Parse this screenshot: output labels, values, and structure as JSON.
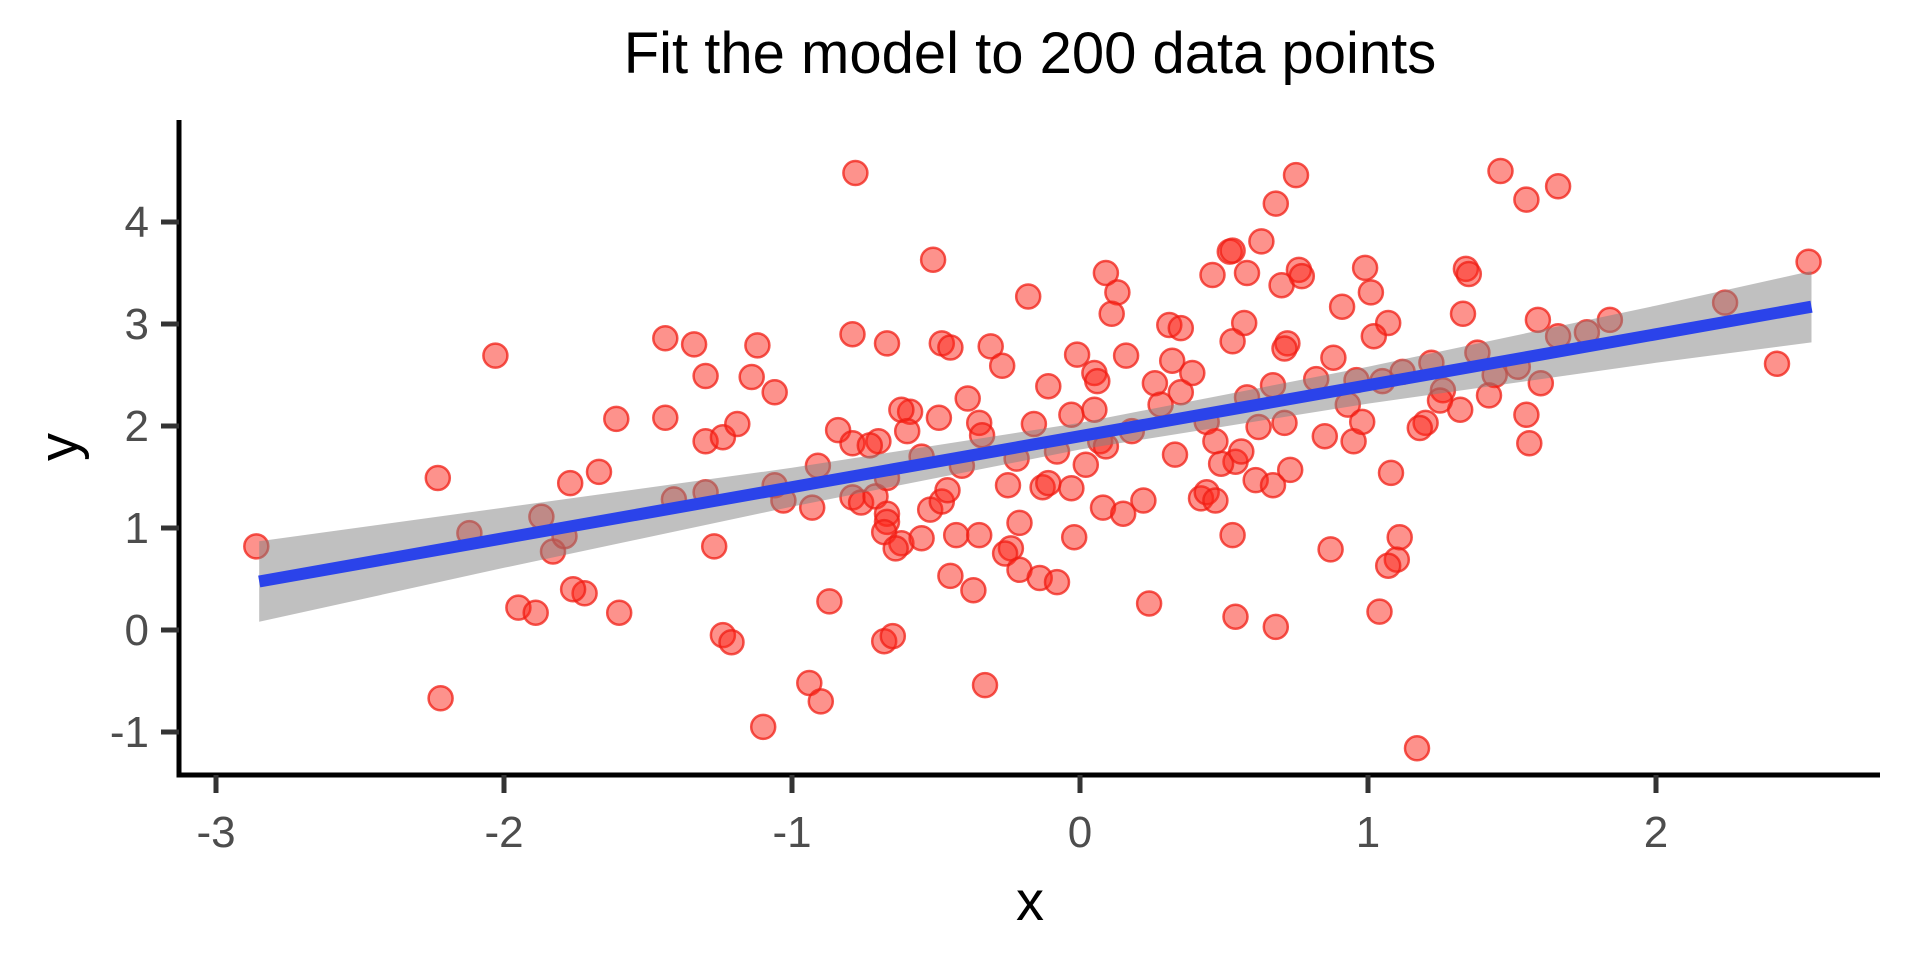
{
  "title": "Fit the model to 200 data points",
  "chart_data": {
    "type": "scatter",
    "title": "Fit the model to 200 data points",
    "xlabel": "x",
    "ylabel": "y",
    "xlim": [
      -3.13,
      2.78
    ],
    "ylim": [
      -1.45,
      4.95
    ],
    "x_ticks": [
      -3,
      -2,
      -1,
      0,
      1,
      2
    ],
    "y_ticks": [
      -1,
      0,
      1,
      2,
      3,
      4
    ],
    "grid": false,
    "legend": "none",
    "n_points": 200,
    "theme": "classic (no gridlines, black axis lines, outward ticks)",
    "trend_line": {
      "type": "linear",
      "intercept": 1.9,
      "slope": 0.5,
      "x_start": -2.85,
      "x_end": 2.54,
      "y_start": 0.47,
      "y_end": 3.17
    },
    "ci_band": [
      {
        "x": -2.85,
        "lo": 0.08,
        "hi": 0.87
      },
      {
        "x": -2.0,
        "lo": 0.61,
        "hi": 1.2
      },
      {
        "x": -1.0,
        "lo": 1.21,
        "hi": 1.59
      },
      {
        "x": 0.0,
        "lo": 1.77,
        "hi": 2.03
      },
      {
        "x": 1.0,
        "lo": 2.22,
        "hi": 2.58
      },
      {
        "x": 2.0,
        "lo": 2.62,
        "hi": 3.18
      },
      {
        "x": 2.54,
        "lo": 2.82,
        "hi": 3.52
      }
    ],
    "points": [
      [
        -2.03,
        2.69
      ],
      [
        -1.44,
        2.86
      ],
      [
        -1.34,
        2.8
      ],
      [
        -1.3,
        2.49
      ],
      [
        -1.61,
        2.07
      ],
      [
        -1.44,
        2.08
      ],
      [
        -1.3,
        1.85
      ],
      [
        -1.24,
        1.89
      ],
      [
        -1.19,
        2.02
      ],
      [
        -0.78,
        4.48
      ],
      [
        -0.51,
        3.63
      ],
      [
        -0.18,
        3.27
      ],
      [
        -1.12,
        2.79
      ],
      [
        -0.79,
        2.9
      ],
      [
        -0.67,
        2.81
      ],
      [
        -0.48,
        2.81
      ],
      [
        -0.45,
        2.77
      ],
      [
        -0.31,
        2.78
      ],
      [
        -0.27,
        2.59
      ],
      [
        -1.14,
        2.48
      ],
      [
        -1.06,
        2.33
      ],
      [
        -0.11,
        2.39
      ],
      [
        -0.01,
        2.7
      ],
      [
        0.05,
        2.52
      ],
      [
        0.06,
        2.44
      ],
      [
        0.09,
        3.5
      ],
      [
        0.13,
        3.31
      ],
      [
        0.11,
        3.1
      ],
      [
        0.16,
        2.69
      ],
      [
        0.31,
        2.99
      ],
      [
        0.35,
        2.96
      ],
      [
        0.32,
        2.64
      ],
      [
        0.39,
        2.52
      ],
      [
        0.35,
        2.33
      ],
      [
        0.26,
        2.42
      ],
      [
        0.46,
        3.48
      ],
      [
        0.52,
        3.71
      ],
      [
        0.53,
        3.72
      ],
      [
        0.58,
        3.5
      ],
      [
        0.63,
        3.81
      ],
      [
        0.57,
        3.01
      ],
      [
        0.53,
        2.83
      ],
      [
        0.68,
        4.18
      ],
      [
        0.75,
        4.46
      ],
      [
        0.7,
        3.38
      ],
      [
        0.76,
        3.53
      ],
      [
        0.77,
        3.47
      ],
      [
        0.72,
        2.81
      ],
      [
        0.71,
        2.76
      ],
      [
        0.67,
        2.4
      ],
      [
        0.05,
        2.16
      ],
      [
        0.07,
        1.85
      ],
      [
        -0.03,
        2.11
      ],
      [
        -0.35,
        2.03
      ],
      [
        -0.34,
        1.91
      ],
      [
        -0.59,
        2.14
      ],
      [
        -0.62,
        2.16
      ],
      [
        -0.49,
        2.08
      ],
      [
        -0.84,
        1.96
      ],
      [
        -0.79,
        1.83
      ],
      [
        -0.7,
        1.85
      ],
      [
        -0.73,
        1.81
      ],
      [
        -0.39,
        2.27
      ],
      [
        0.09,
        1.8
      ],
      [
        1.46,
        4.5
      ],
      [
        1.55,
        4.22
      ],
      [
        1.66,
        4.35
      ],
      [
        0.99,
        3.55
      ],
      [
        0.91,
        3.17
      ],
      [
        1.01,
        3.31
      ],
      [
        1.34,
        3.54
      ],
      [
        1.35,
        3.49
      ],
      [
        1.07,
        3.01
      ],
      [
        1.02,
        2.88
      ],
      [
        1.33,
        3.1
      ],
      [
        1.59,
        3.04
      ],
      [
        1.66,
        2.88
      ],
      [
        1.76,
        2.92
      ],
      [
        1.84,
        3.04
      ],
      [
        2.24,
        3.21
      ],
      [
        2.53,
        3.61
      ],
      [
        2.42,
        2.61
      ],
      [
        0.93,
        2.21
      ],
      [
        1.2,
        2.03
      ],
      [
        1.18,
        1.98
      ],
      [
        1.32,
        2.16
      ],
      [
        1.55,
        2.11
      ],
      [
        0.95,
        1.85
      ],
      [
        1.56,
        1.83
      ],
      [
        -2.23,
        1.49
      ],
      [
        -2.86,
        0.82
      ],
      [
        -2.12,
        0.95
      ],
      [
        -1.87,
        1.11
      ],
      [
        -1.77,
        1.44
      ],
      [
        -1.67,
        1.55
      ],
      [
        -1.83,
        0.77
      ],
      [
        -1.79,
        0.92
      ],
      [
        -1.95,
        0.22
      ],
      [
        -1.89,
        0.17
      ],
      [
        -1.72,
        0.36
      ],
      [
        -1.76,
        0.4
      ],
      [
        -1.6,
        0.17
      ],
      [
        -1.41,
        1.28
      ],
      [
        -1.3,
        1.35
      ],
      [
        -1.27,
        0.82
      ],
      [
        -1.24,
        -0.05
      ],
      [
        -1.21,
        -0.12
      ],
      [
        -2.22,
        -0.67
      ],
      [
        -0.91,
        1.61
      ],
      [
        -1.06,
        1.42
      ],
      [
        -1.03,
        1.27
      ],
      [
        -0.93,
        1.2
      ],
      [
        -0.79,
        1.3
      ],
      [
        -0.76,
        1.25
      ],
      [
        -0.71,
        1.31
      ],
      [
        -0.67,
        1.49
      ],
      [
        -0.67,
        1.14
      ],
      [
        -0.67,
        1.06
      ],
      [
        -0.68,
        0.96
      ],
      [
        -0.62,
        0.85
      ],
      [
        -0.64,
        0.8
      ],
      [
        -0.55,
        0.9
      ],
      [
        -0.52,
        1.18
      ],
      [
        -0.48,
        1.26
      ],
      [
        -0.46,
        1.37
      ],
      [
        -0.43,
        0.93
      ],
      [
        -0.35,
        0.93
      ],
      [
        -0.25,
        1.42
      ],
      [
        -0.24,
        0.8
      ],
      [
        -0.26,
        0.75
      ],
      [
        -0.21,
        1.05
      ],
      [
        -0.21,
        0.59
      ],
      [
        -0.45,
        0.53
      ],
      [
        -0.37,
        0.39
      ],
      [
        -0.14,
        0.51
      ],
      [
        -0.08,
        0.47
      ],
      [
        -0.13,
        1.4
      ],
      [
        -0.11,
        1.44
      ],
      [
        -0.03,
        1.39
      ],
      [
        -0.02,
        0.91
      ],
      [
        0.08,
        1.2
      ],
      [
        0.15,
        1.14
      ],
      [
        0.22,
        1.27
      ],
      [
        0.42,
        1.29
      ],
      [
        0.44,
        1.35
      ],
      [
        0.47,
        1.27
      ],
      [
        0.53,
        0.93
      ],
      [
        0.54,
        1.65
      ],
      [
        0.49,
        1.63
      ],
      [
        0.61,
        1.47
      ],
      [
        0.67,
        1.42
      ],
      [
        0.73,
        1.57
      ],
      [
        0.54,
        0.13
      ],
      [
        0.68,
        0.03
      ],
      [
        0.24,
        0.26
      ],
      [
        -0.87,
        0.28
      ],
      [
        -0.68,
        -0.11
      ],
      [
        -0.65,
        -0.06
      ],
      [
        -0.94,
        -0.52
      ],
      [
        -0.9,
        -0.7
      ],
      [
        -1.1,
        -0.95
      ],
      [
        -0.33,
        -0.54
      ],
      [
        1.08,
        1.54
      ],
      [
        0.87,
        0.79
      ],
      [
        1.11,
        0.91
      ],
      [
        1.1,
        0.69
      ],
      [
        1.07,
        0.63
      ],
      [
        1.04,
        0.18
      ],
      [
        1.17,
        -1.16
      ],
      [
        0.02,
        1.62
      ],
      [
        0.18,
        1.95
      ],
      [
        0.28,
        2.21
      ],
      [
        0.44,
        2.04
      ],
      [
        0.58,
        2.28
      ],
      [
        0.62,
        1.99
      ],
      [
        0.82,
        2.46
      ],
      [
        0.88,
        2.67
      ],
      [
        0.96,
        2.45
      ],
      [
        1.05,
        2.44
      ],
      [
        1.12,
        2.53
      ],
      [
        1.22,
        2.62
      ],
      [
        1.26,
        2.35
      ],
      [
        1.38,
        2.72
      ],
      [
        1.44,
        2.5
      ],
      [
        1.52,
        2.58
      ],
      [
        -0.08,
        1.75
      ],
      [
        -0.16,
        2.02
      ],
      [
        -0.22,
        1.68
      ],
      [
        -0.41,
        1.61
      ],
      [
        -0.55,
        1.7
      ],
      [
        -0.6,
        1.95
      ],
      [
        0.33,
        1.72
      ],
      [
        0.47,
        1.85
      ],
      [
        0.56,
        1.75
      ],
      [
        0.71,
        2.03
      ],
      [
        0.85,
        1.9
      ],
      [
        0.98,
        2.04
      ],
      [
        1.25,
        2.25
      ],
      [
        1.42,
        2.3
      ],
      [
        1.6,
        2.42
      ]
    ],
    "colors": {
      "background": "#ffffff",
      "point_fill": "#fb2519",
      "point_fill_alpha": 0.5,
      "point_stroke": "#f01e14",
      "point_stroke_alpha": 0.75,
      "trend_line": "#2b43ea",
      "ci_band": "#828282",
      "ci_band_alpha": 0.5,
      "axis_line": "#000000",
      "tick_mark": "#333333",
      "tick_label": "#4d4d4d",
      "title_text": "#000000"
    }
  }
}
